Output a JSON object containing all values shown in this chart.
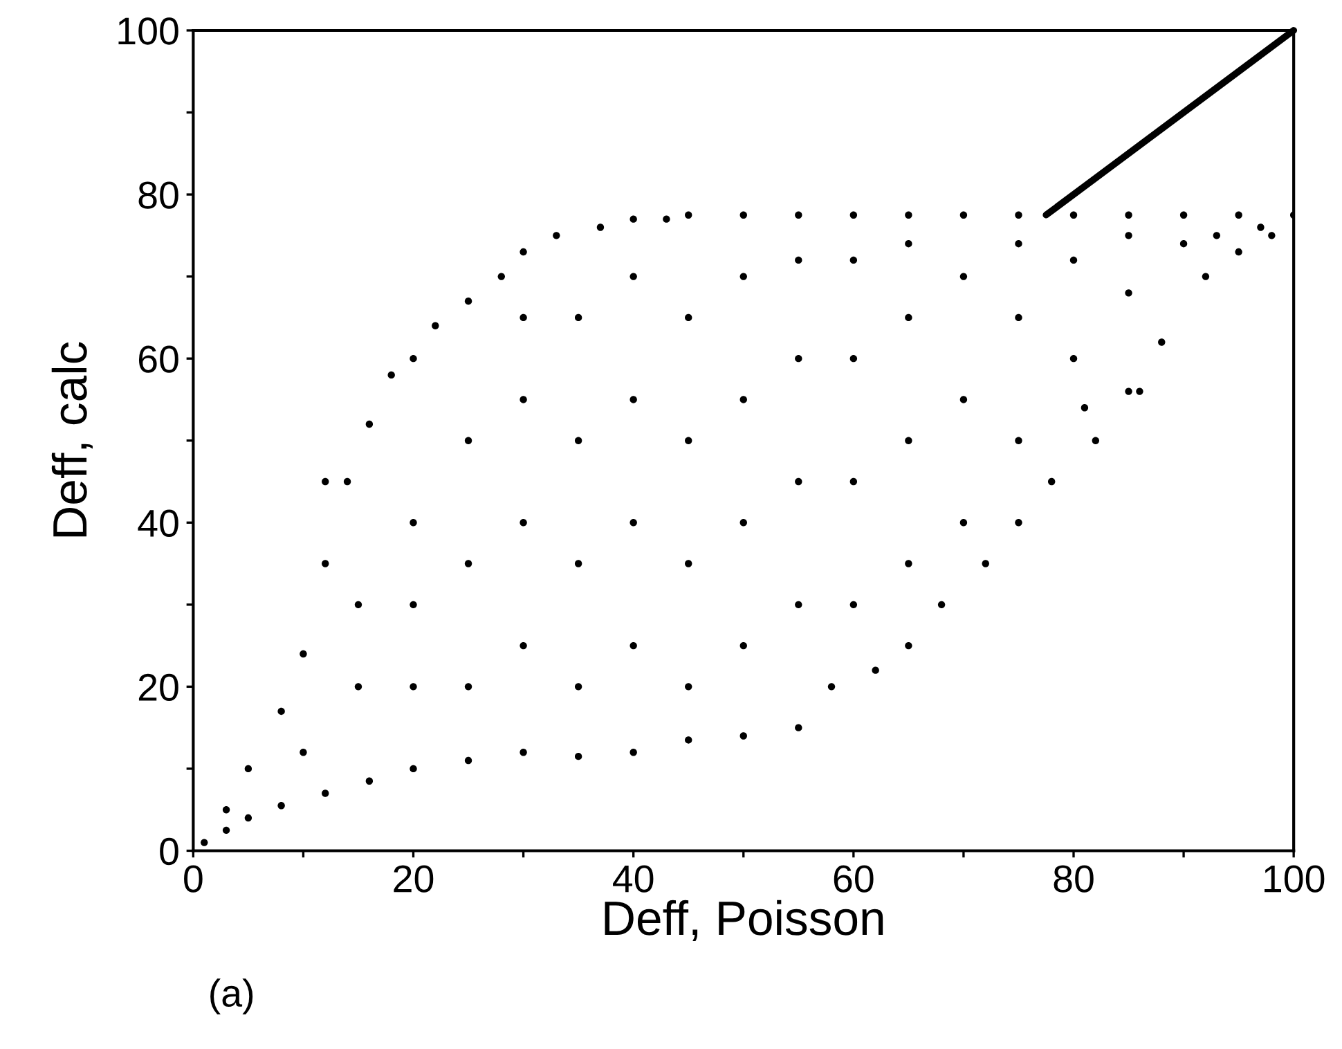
{
  "chart_data": {
    "type": "scatter",
    "xlabel": "Deff, Poisson",
    "ylabel": "Deff, calc",
    "annotations": [
      "(a)"
    ],
    "xlim": [
      0,
      100
    ],
    "ylim": [
      0,
      100
    ],
    "xticks": [
      0,
      {
        "value": 10,
        "label": null
      },
      20,
      {
        "value": 30,
        "label": null
      },
      40,
      {
        "value": 50,
        "label": null
      },
      60,
      {
        "value": 70,
        "label": null
      },
      80,
      {
        "value": 90,
        "label": null
      },
      100
    ],
    "yticks": [
      0,
      {
        "value": 10,
        "label": null
      },
      20,
      {
        "value": 30,
        "label": null
      },
      40,
      {
        "value": 50,
        "label": null
      },
      60,
      {
        "value": 70,
        "label": null
      },
      80,
      {
        "value": 90,
        "label": null
      },
      100
    ],
    "grid": false,
    "legend": false,
    "marker": "circle",
    "series": [
      {
        "color": "#000000",
        "x": [
          45,
          50,
          55,
          60,
          65,
          70,
          75,
          80,
          85,
          90,
          95,
          100,
          3,
          5,
          8,
          10,
          12,
          14,
          16,
          18,
          20,
          22,
          25,
          28,
          30,
          33,
          37,
          40,
          43,
          1,
          3,
          5,
          8,
          12,
          16,
          20,
          25,
          30,
          35,
          40,
          45,
          50,
          55,
          58,
          62,
          65,
          68,
          72,
          75,
          78,
          82,
          85,
          88,
          92,
          95,
          98,
          10,
          15,
          15,
          20,
          20,
          20,
          25,
          25,
          25,
          30,
          30,
          30,
          30,
          35,
          35,
          35,
          35,
          40,
          40,
          40,
          40,
          45,
          45,
          45,
          45,
          50,
          50,
          50,
          50,
          55,
          55,
          55,
          55,
          60,
          60,
          60,
          60,
          65,
          65,
          65,
          65,
          70,
          70,
          70,
          75,
          75,
          75,
          80,
          80,
          85,
          85,
          90,
          93,
          97,
          86,
          81,
          12
        ],
        "values": [
          77.5,
          77.5,
          77.5,
          77.5,
          77.5,
          77.5,
          77.5,
          77.5,
          77.5,
          77.5,
          77.5,
          77.5,
          5,
          10,
          17,
          24,
          35,
          45,
          52,
          58,
          60,
          64,
          67,
          70,
          73,
          75,
          76,
          77,
          77,
          1,
          2.5,
          4,
          5.5,
          7,
          8.5,
          10,
          11,
          12,
          11.5,
          12,
          13.5,
          14,
          15,
          20,
          22,
          25,
          30,
          35,
          40,
          45,
          50,
          56,
          62,
          70,
          73,
          75,
          12,
          20,
          30,
          20,
          30,
          40,
          20,
          35,
          50,
          25,
          40,
          55,
          65,
          20,
          35,
          50,
          65,
          25,
          40,
          55,
          70,
          20,
          35,
          50,
          65,
          25,
          40,
          55,
          70,
          30,
          45,
          60,
          72,
          30,
          45,
          60,
          72,
          35,
          50,
          65,
          74,
          40,
          55,
          70,
          50,
          65,
          74,
          60,
          72,
          68,
          75,
          74,
          75,
          76,
          56,
          54,
          45
        ]
      },
      {
        "type": "line",
        "color": "#000000",
        "line_style": "solid",
        "marker": "none",
        "x": [
          77.5,
          100
        ],
        "values": [
          77.5,
          100
        ]
      }
    ]
  }
}
